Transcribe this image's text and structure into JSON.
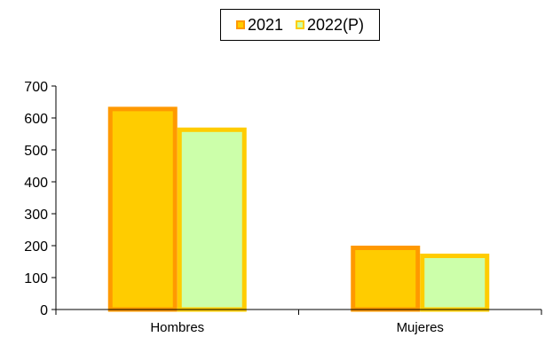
{
  "chart_data": {
    "type": "bar",
    "categories": [
      "Hombres",
      "Mujeres"
    ],
    "series": [
      {
        "name": "2021",
        "values": [
          635,
          200
        ],
        "fill": "#FFCC00",
        "stroke": "#FF9900"
      },
      {
        "name": "2022(P)",
        "values": [
          570,
          175
        ],
        "fill": "#CCFFAA",
        "stroke": "#FFCC00"
      }
    ],
    "ylim": [
      0,
      700
    ],
    "yticks": [
      0,
      100,
      200,
      300,
      400,
      500,
      600,
      700
    ],
    "title": "",
    "xlabel": "",
    "ylabel": "",
    "grid": false,
    "legend_position": "top-center"
  }
}
